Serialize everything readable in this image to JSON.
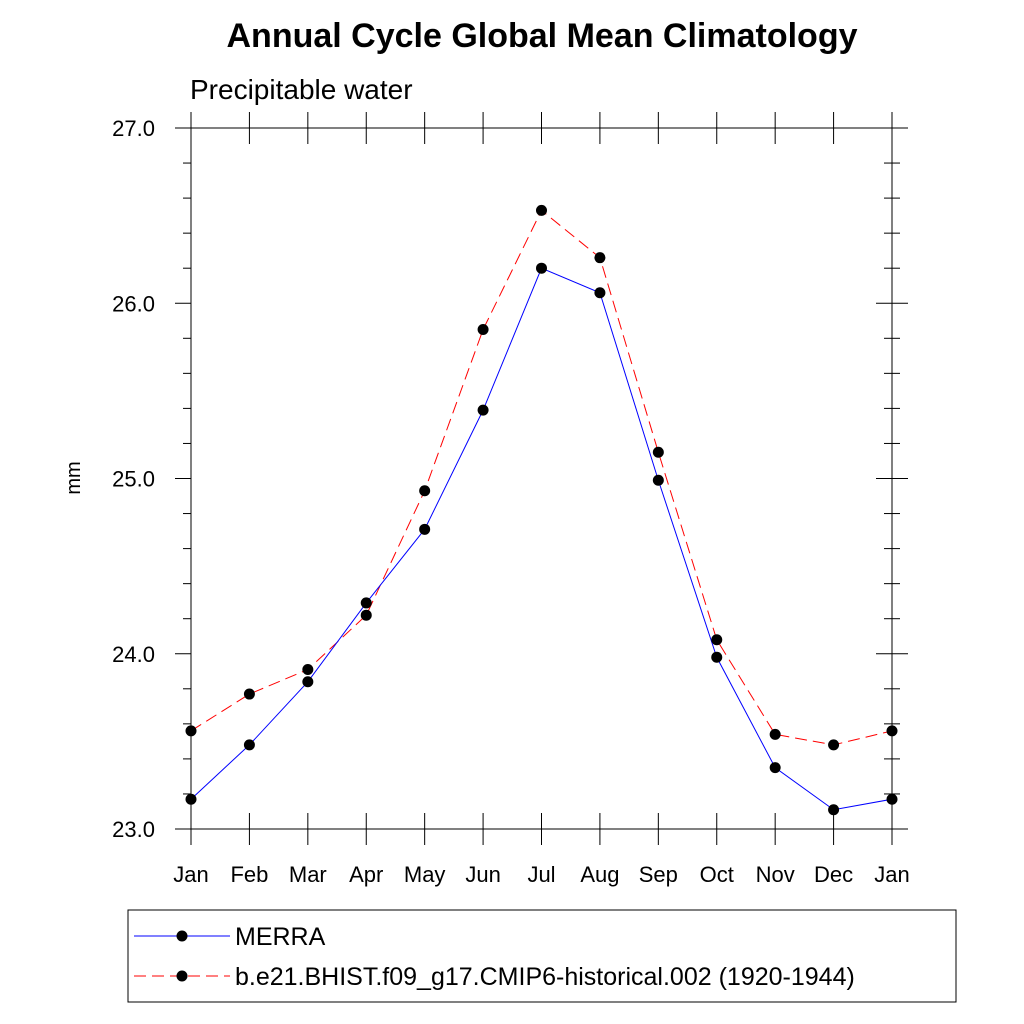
{
  "chart_data": {
    "type": "line",
    "title": "Annual Cycle Global Mean Climatology",
    "subtitle": "Precipitable water",
    "xlabel": "",
    "ylabel": "mm",
    "categories": [
      "Jan",
      "Feb",
      "Mar",
      "Apr",
      "May",
      "Jun",
      "Jul",
      "Aug",
      "Sep",
      "Oct",
      "Nov",
      "Dec",
      "Jan"
    ],
    "ylim": [
      23.0,
      27.0
    ],
    "yticks": [
      "23.0",
      "24.0",
      "25.0",
      "26.0",
      "27.0"
    ],
    "grid": false,
    "legend_position": "bottom",
    "series": [
      {
        "name": "MERRA",
        "color": "#0000ff",
        "line_style": "solid",
        "marker": "filled-circle",
        "values": [
          23.17,
          23.48,
          23.84,
          24.29,
          24.71,
          25.39,
          26.2,
          26.06,
          24.99,
          23.98,
          23.35,
          23.11,
          23.17
        ]
      },
      {
        "name": "b.e21.BHIST.f09_g17.CMIP6-historical.002 (1920-1944)",
        "color": "#ff0000",
        "line_style": "dashed",
        "marker": "filled-circle",
        "values": [
          23.56,
          23.77,
          23.91,
          24.22,
          24.93,
          25.85,
          26.53,
          26.26,
          25.15,
          24.08,
          23.54,
          23.48,
          23.56
        ]
      }
    ]
  }
}
